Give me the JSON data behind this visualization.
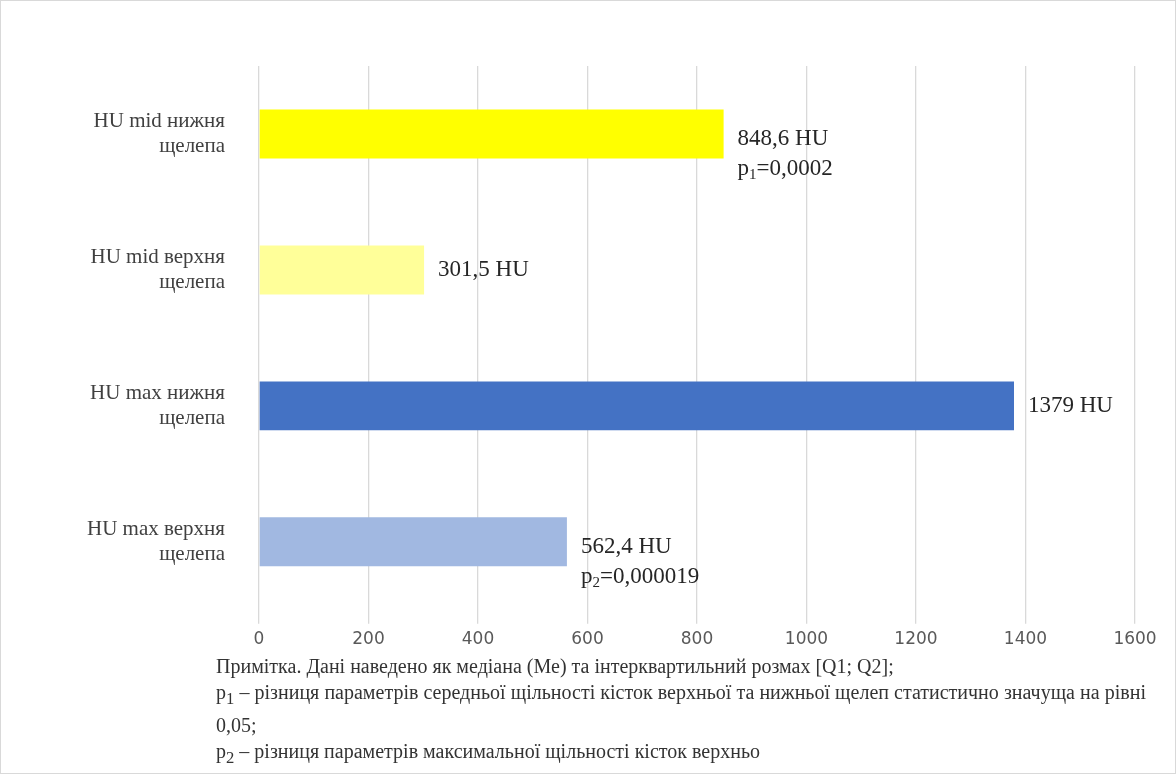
{
  "chart_data": {
    "type": "bar",
    "orientation": "horizontal",
    "categories": [
      "HU mid нижня щелепа",
      "HU mid верхня щелепа",
      "HU max нижня щелепа",
      "HU max верхня щелепа"
    ],
    "values": [
      848.6,
      301.5,
      1379,
      562.4
    ],
    "colors": [
      "#ffff00",
      "#ffff99",
      "#4472c4",
      "#a1b8e1"
    ],
    "value_labels": [
      "848,6 HU\np$_{1}$=0,0002",
      "301,5 HU",
      "1379 HU",
      "562,4 HU\np$_{2}$=0,000019"
    ],
    "xlim": [
      0,
      1600
    ],
    "xticks": [
      0,
      200,
      400,
      600,
      800,
      1000,
      1200,
      1400,
      1600
    ],
    "grid": "x",
    "legend": false,
    "annotations": [
      "Примітка. Дані наведено як медіана (Ме) та інтерквартильний розмах [Q1; Q2];\np$_{1}$ – різниця параметрів середньої щільності кісток верхньої та нижньої щелеп статистично значуща на рівні 0,05;\np$_{2}$ – різниця параметрів максимальної щільності кісток верхньо"
    ]
  }
}
